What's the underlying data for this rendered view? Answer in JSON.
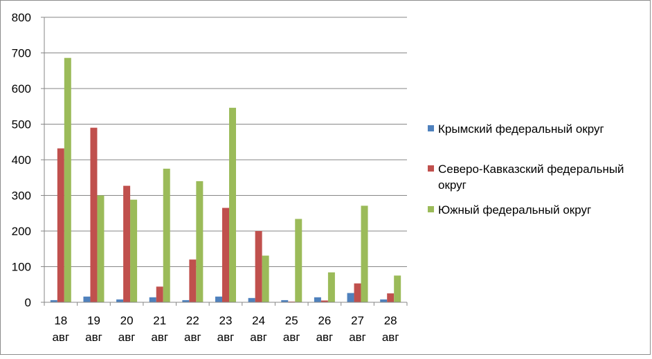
{
  "chart_data": {
    "type": "bar",
    "categories": [
      [
        "18",
        "авг"
      ],
      [
        "19",
        "авг"
      ],
      [
        "20",
        "авг"
      ],
      [
        "21",
        "авг"
      ],
      [
        "22",
        "авг"
      ],
      [
        "23",
        "авг"
      ],
      [
        "24",
        "авг"
      ],
      [
        "25",
        "авг"
      ],
      [
        "26",
        "авг"
      ],
      [
        "27",
        "авг"
      ],
      [
        "28",
        "авг"
      ]
    ],
    "series": [
      {
        "name": "Крымский федеральный округ",
        "color": "#4f81bd",
        "values": [
          6,
          16,
          8,
          14,
          6,
          16,
          12,
          6,
          14,
          26,
          8
        ]
      },
      {
        "name": "Северо-Кавказский федеральный округ",
        "color": "#c0504d",
        "values": [
          432,
          490,
          327,
          44,
          120,
          265,
          200,
          2,
          5,
          53,
          25
        ]
      },
      {
        "name": "Южный федеральный округ",
        "color": "#9bbb59",
        "values": [
          686,
          300,
          288,
          375,
          340,
          546,
          131,
          234,
          84,
          271,
          75
        ]
      }
    ],
    "ylim": [
      0,
      800
    ],
    "yticks": [
      "0",
      "100",
      "200",
      "300",
      "400",
      "500",
      "600",
      "700",
      "800"
    ],
    "grid": true,
    "legend_position": "right"
  }
}
